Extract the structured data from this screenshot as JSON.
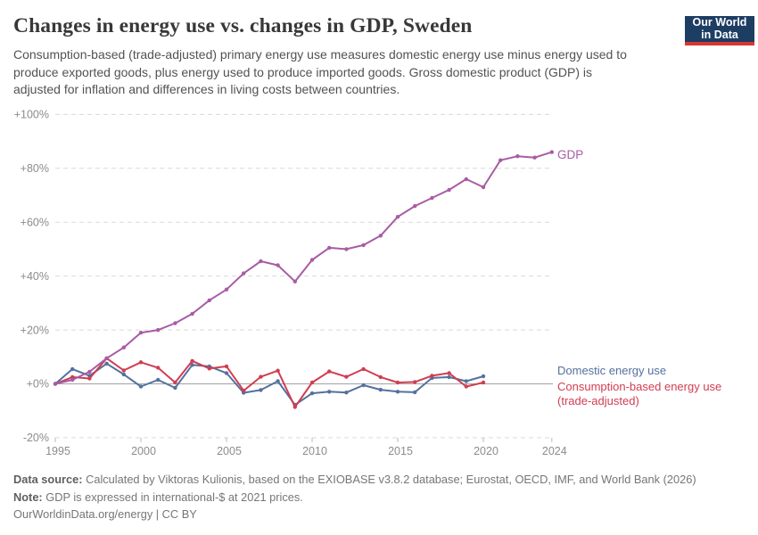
{
  "header": {
    "title": "Changes in energy use vs. changes in GDP, Sweden",
    "subtitle_lines": [
      "Consumption-based (trade-adjusted) primary energy use measures domestic energy use minus energy used to",
      "produce exported goods, plus energy used to produce imported goods. Gross domestic product (GDP) is",
      "adjusted for inflation and differences in living costs between countries."
    ],
    "logo": {
      "line1": "Our World",
      "line2": "in Data"
    }
  },
  "series_labels": {
    "gdp": "GDP",
    "domestic": "Domestic energy use",
    "consumption_line1": "Consumption-based energy use",
    "consumption_line2": "(trade-adjusted)"
  },
  "chart_data": {
    "type": "line",
    "title": "Changes in energy use vs. changes in GDP, Sweden",
    "unit": "%",
    "xlim": [
      1995,
      2024
    ],
    "ylim": [
      -20,
      100
    ],
    "grid": "horizontal-dashed",
    "legend_position": "end-of-line-labels-right",
    "xtick_years": [
      1995,
      2000,
      2005,
      2010,
      2015,
      2020,
      2024
    ],
    "xtick_labels": [
      "1995",
      "2000",
      "2005",
      "2010",
      "2015",
      "2020",
      "2024"
    ],
    "ytick_values": [
      100,
      80,
      60,
      40,
      20,
      0,
      -20
    ],
    "ytick_labels": [
      "+100%",
      "+80%",
      "+60%",
      "+40%",
      "+20%",
      "+0%",
      "-20%"
    ],
    "zero_line_value": 0,
    "series": [
      {
        "name": "Domestic energy use",
        "color": "#54719e",
        "start_year": 1995,
        "values": [
          0,
          5.5,
          3,
          7.5,
          3.5,
          -1,
          1.5,
          -1.5,
          7,
          6.5,
          4,
          -3.3,
          -2.3,
          1,
          -7.8,
          -3.5,
          -2.9,
          -3.2,
          -0.5,
          -2.2,
          -2.9,
          -3.1,
          2.2,
          2.5,
          1,
          2.8
        ]
      },
      {
        "name": "Consumption-based energy use (trade-adjusted)",
        "color": "#d13d51",
        "start_year": 1995,
        "values": [
          0,
          2.5,
          2,
          9.5,
          5,
          8,
          6,
          0.5,
          8.5,
          5.7,
          6.5,
          -2.5,
          2.6,
          4.9,
          -8.6,
          0.5,
          4.6,
          2.6,
          5.5,
          2.5,
          0.5,
          0.7,
          3,
          4,
          -1,
          0.5
        ]
      },
      {
        "name": "GDP",
        "color": "#a85ca3",
        "start_year": 1995,
        "values": [
          0,
          1.5,
          4.5,
          9.5,
          13.5,
          19,
          20,
          22.5,
          26,
          31,
          35,
          41,
          45.5,
          44,
          38,
          46,
          50.5,
          50,
          51.5,
          55,
          62,
          66,
          69,
          72,
          76,
          73,
          83,
          84.5,
          84,
          86
        ]
      }
    ]
  },
  "footer": {
    "source_label": "Data source:",
    "source_text": " Calculated by Viktoras Kulionis, based on the EXIOBASE v3.8.2 database; Eurostat, OECD, IMF, and World Bank (2026)",
    "note_label": "Note:",
    "note_text": " GDP is expressed in international-$ at 2021 prices.",
    "citation": "OurWorldinData.org/energy | CC BY"
  }
}
